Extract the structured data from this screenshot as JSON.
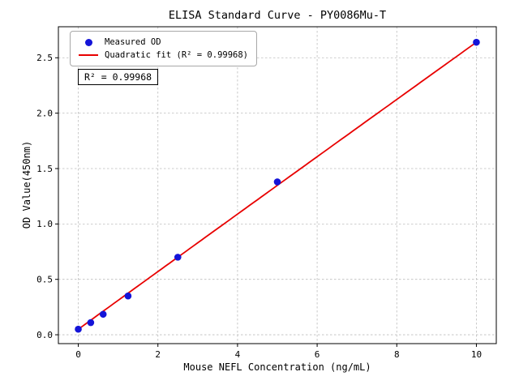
{
  "chart_data": {
    "type": "scatter",
    "title": "ELISA Standard Curve - PY0086Mu-T",
    "xlabel": "Mouse NEFL Concentration (ng/mL)",
    "ylabel": "OD Value(450nm)",
    "xlim": [
      -0.5,
      10.5
    ],
    "ylim": [
      -0.08,
      2.78
    ],
    "xticks": [
      "0",
      "2",
      "4",
      "6",
      "8",
      "10"
    ],
    "yticks": [
      "0.0",
      "0.5",
      "1.0",
      "1.5",
      "2.0",
      "2.5"
    ],
    "grid": true,
    "legend_position": "upper-left",
    "annotation": "R² = 0.99968",
    "series": [
      {
        "name": "Measured OD",
        "type": "scatter",
        "color": "#1414d8",
        "x": [
          0,
          0.3125,
          0.625,
          1.25,
          2.5,
          5,
          10
        ],
        "y": [
          0.05,
          0.11,
          0.185,
          0.35,
          0.7,
          1.38,
          2.64
        ]
      },
      {
        "name": "Quadratic fit (R² = 0.99968)",
        "type": "line",
        "color": "#e80000",
        "x_range": [
          0,
          10
        ],
        "fit": {
          "a": 0.05,
          "b": 0.2603,
          "c": -0.000133
        }
      }
    ]
  }
}
